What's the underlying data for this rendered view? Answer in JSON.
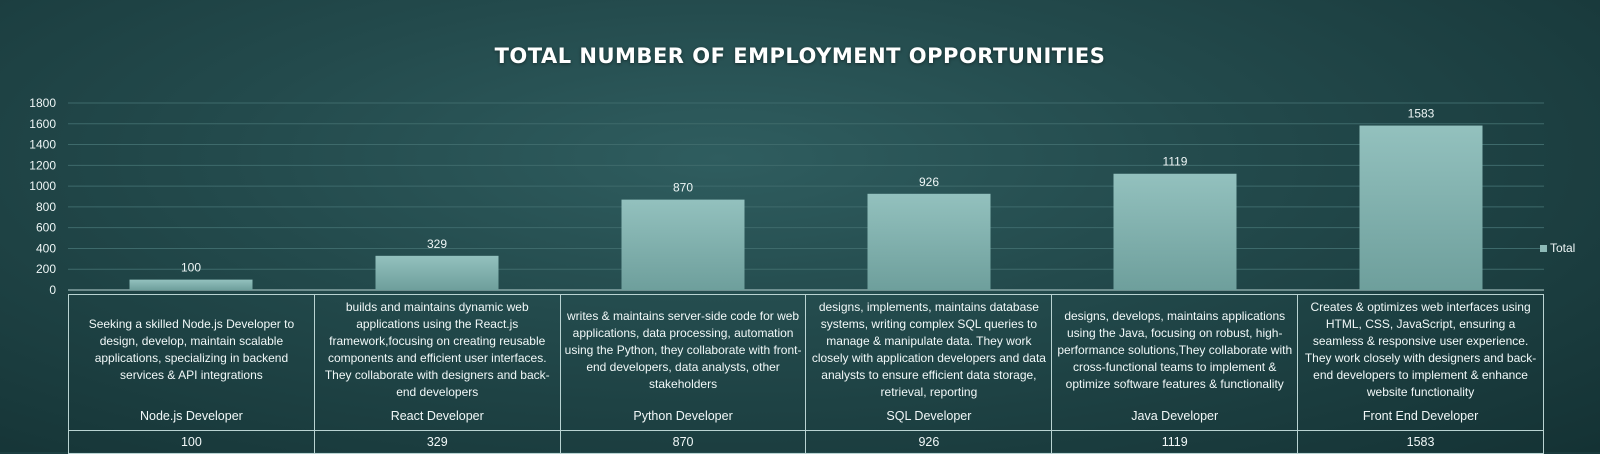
{
  "chart_data": {
    "type": "bar",
    "title": "TOTAL NUMBER OF EMPLOYMENT OPPORTUNITIES",
    "categories": [
      "Node.js Developer",
      "React Developer",
      "Python Developer",
      "SQL Developer",
      "Java Developer",
      "Front End Developer"
    ],
    "descriptions": [
      "Seeking a skilled Node.js Developer to design, develop, maintain scalable applications, specializing in backend services & API integrations",
      "builds and maintains dynamic web applications using the React.js framework,focusing on creating reusable components and efficient user interfaces. They collaborate with designers and back-end developers",
      "writes & maintains server-side code for web applications, data processing, automation using the Python, they collaborate with front-end developers, data analysts, other stakeholders",
      "designs, implements, maintains database systems, writing complex SQL queries to manage & manipulate data. They work closely with application developers and data analysts to ensure efficient data storage, retrieval, reporting",
      "designs, develops, maintains applications using the Java, focusing on robust, high-performance solutions,They collaborate with cross-functional teams to implement & optimize software features & functionality",
      "Creates & optimizes web interfaces using HTML, CSS, JavaScript, ensuring a seamless & responsive user experience. They work closely with designers and back-end developers to implement & enhance website functionality"
    ],
    "series": [
      {
        "name": "Total",
        "values": [
          100,
          329,
          870,
          926,
          1119,
          1583
        ]
      }
    ],
    "ylim": [
      0,
      1800
    ],
    "yticks": [
      0,
      200,
      400,
      600,
      800,
      1000,
      1200,
      1400,
      1600,
      1800
    ],
    "grid": true,
    "legend_position": "right",
    "colors": {
      "bar": "#8dbab7",
      "bar_dark": "#6e9f9c",
      "grid": "#3e6a6b"
    }
  }
}
